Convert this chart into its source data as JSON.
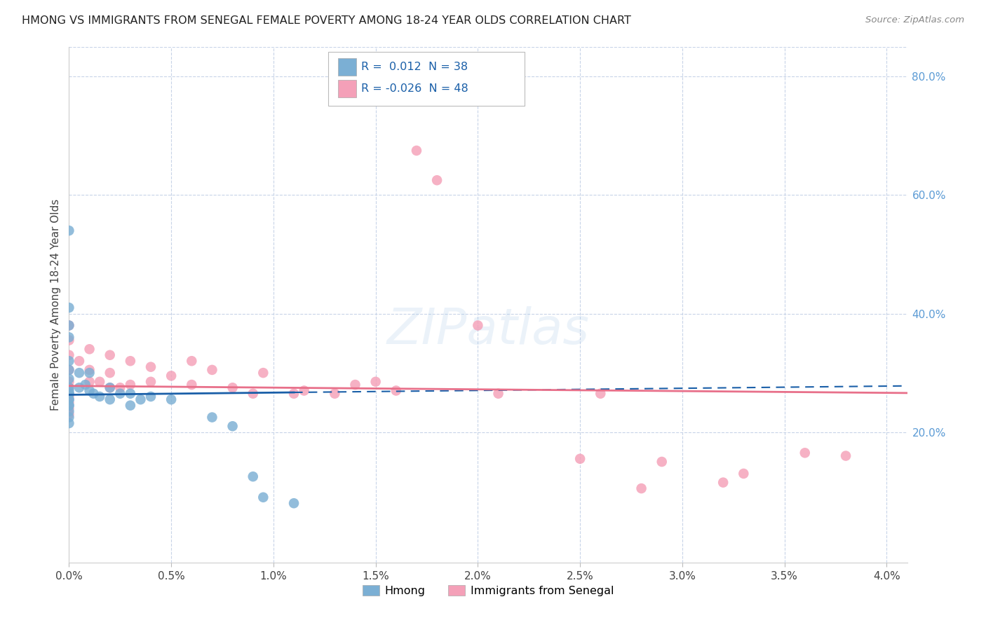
{
  "title": "HMONG VS IMMIGRANTS FROM SENEGAL FEMALE POVERTY AMONG 18-24 YEAR OLDS CORRELATION CHART",
  "source": "Source: ZipAtlas.com",
  "ylabel": "Female Poverty Among 18-24 Year Olds",
  "hmong_color": "#7bafd4",
  "senegal_color": "#f4a0b8",
  "hmong_line_color": "#1a5fa8",
  "senegal_line_color": "#e8708a",
  "background_color": "#ffffff",
  "grid_color": "#c8d4e8",
  "xlim": [
    0.0,
    0.041
  ],
  "ylim": [
    -0.02,
    0.85
  ],
  "x_ticks": [
    0.0,
    0.005,
    0.01,
    0.015,
    0.02,
    0.025,
    0.03,
    0.035,
    0.04
  ],
  "y_ticks_right": [
    0.2,
    0.4,
    0.6,
    0.8
  ],
  "hmong_x": [
    0.0,
    0.0,
    0.0,
    0.0,
    0.0,
    0.0,
    0.0,
    0.0,
    0.0,
    0.0,
    0.0,
    0.0,
    0.0,
    0.0,
    0.0,
    0.0,
    0.0,
    0.0,
    0.0005,
    0.0005,
    0.0008,
    0.001,
    0.001,
    0.0012,
    0.0015,
    0.002,
    0.002,
    0.0025,
    0.003,
    0.003,
    0.0035,
    0.004,
    0.005,
    0.007,
    0.008,
    0.009,
    0.0095,
    0.011
  ],
  "hmong_y": [
    0.54,
    0.41,
    0.38,
    0.36,
    0.32,
    0.305,
    0.29,
    0.275,
    0.265,
    0.255,
    0.245,
    0.235,
    0.225,
    0.215,
    0.27,
    0.265,
    0.255,
    0.245,
    0.3,
    0.275,
    0.28,
    0.3,
    0.27,
    0.265,
    0.26,
    0.275,
    0.255,
    0.265,
    0.265,
    0.245,
    0.255,
    0.26,
    0.255,
    0.225,
    0.21,
    0.125,
    0.09,
    0.08
  ],
  "senegal_x": [
    0.0,
    0.0,
    0.0,
    0.0,
    0.0,
    0.0,
    0.0,
    0.0,
    0.0,
    0.0,
    0.0005,
    0.001,
    0.001,
    0.001,
    0.0015,
    0.002,
    0.002,
    0.002,
    0.0025,
    0.003,
    0.003,
    0.004,
    0.004,
    0.005,
    0.006,
    0.006,
    0.007,
    0.008,
    0.009,
    0.0095,
    0.011,
    0.0115,
    0.013,
    0.014,
    0.015,
    0.016,
    0.017,
    0.018,
    0.02,
    0.021,
    0.025,
    0.026,
    0.028,
    0.029,
    0.032,
    0.033,
    0.036,
    0.038
  ],
  "senegal_y": [
    0.38,
    0.355,
    0.33,
    0.305,
    0.285,
    0.275,
    0.26,
    0.25,
    0.24,
    0.23,
    0.32,
    0.34,
    0.305,
    0.285,
    0.285,
    0.33,
    0.3,
    0.275,
    0.275,
    0.32,
    0.28,
    0.31,
    0.285,
    0.295,
    0.32,
    0.28,
    0.305,
    0.275,
    0.265,
    0.3,
    0.265,
    0.27,
    0.265,
    0.28,
    0.285,
    0.27,
    0.675,
    0.625,
    0.38,
    0.265,
    0.155,
    0.265,
    0.105,
    0.15,
    0.115,
    0.13,
    0.165,
    0.16
  ],
  "hmong_trend_x": [
    0.0,
    0.011,
    0.041
  ],
  "hmong_trend_y_solid_end": 0.011,
  "senegal_trend_x": [
    0.0,
    0.041
  ],
  "hmong_line_y0": 0.263,
  "hmong_line_y1": 0.278,
  "senegal_line_y0": 0.278,
  "senegal_line_y1": 0.266
}
